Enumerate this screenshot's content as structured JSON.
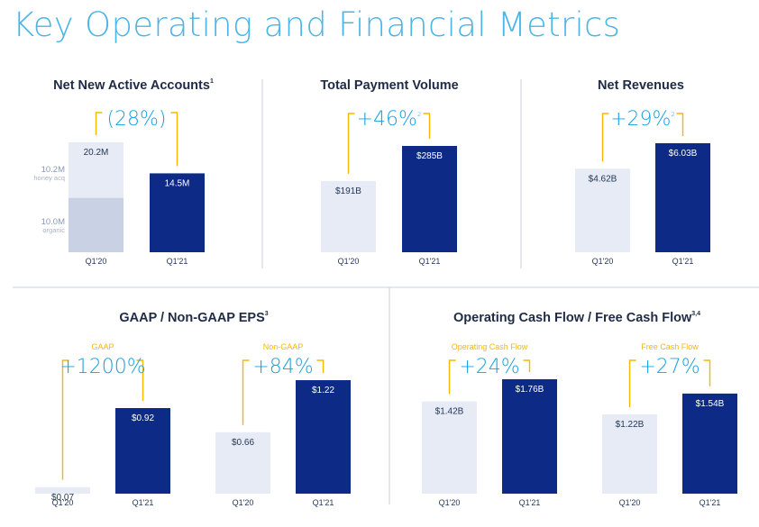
{
  "title": "Key Operating and Financial Metrics",
  "colors": {
    "light": "#e6ebf5",
    "dark": "#0c2a86",
    "accent": "#f5b800",
    "growth": "#1aa0e0",
    "divider": "#c8cfdb"
  },
  "chart_data": [
    {
      "type": "bar",
      "title": "Net New Active Accounts",
      "footnote": "1",
      "categories": [
        "Q1'20",
        "Q1'21"
      ],
      "values": [
        20.2,
        14.5
      ],
      "labels": [
        "20.2M",
        "14.5M"
      ],
      "growth": "(28%)",
      "segments": [
        {
          "label": "10.0M",
          "sublabel": "organic",
          "value": 10.0
        },
        {
          "label": "10.2M",
          "sublabel": "honey acq",
          "value": 10.2
        }
      ]
    },
    {
      "type": "bar",
      "title": "Total Payment Volume",
      "categories": [
        "Q1'20",
        "Q1'21"
      ],
      "values": [
        191,
        285
      ],
      "labels": [
        "$191B",
        "$285B"
      ],
      "growth": "+46%",
      "growth_sup": "2"
    },
    {
      "type": "bar",
      "title": "Net Revenues",
      "categories": [
        "Q1'20",
        "Q1'21"
      ],
      "values": [
        4.62,
        6.03
      ],
      "labels": [
        "$4.62B",
        "$6.03B"
      ],
      "growth": "+29%",
      "growth_sup": "2"
    },
    {
      "type": "bar",
      "title": "GAAP / Non-GAAP EPS",
      "footnote": "3",
      "groups": [
        {
          "name": "GAAP",
          "categories": [
            "Q1'20",
            "Q1'21"
          ],
          "values": [
            0.07,
            0.92
          ],
          "labels": [
            "$0.07",
            "$0.92"
          ],
          "growth": "+1200%"
        },
        {
          "name": "Non-GAAP",
          "categories": [
            "Q1'20",
            "Q1'21"
          ],
          "values": [
            0.66,
            1.22
          ],
          "labels": [
            "$0.66",
            "$1.22"
          ],
          "growth": "+84%"
        }
      ]
    },
    {
      "type": "bar",
      "title": "Operating Cash Flow / Free Cash Flow",
      "footnote": "3,4",
      "groups": [
        {
          "name": "Operating Cash Flow",
          "categories": [
            "Q1'20",
            "Q1'21"
          ],
          "values": [
            1.42,
            1.76
          ],
          "labels": [
            "$1.42B",
            "$1.76B"
          ],
          "growth": "+24%"
        },
        {
          "name": "Free Cash Flow",
          "categories": [
            "Q1'20",
            "Q1'21"
          ],
          "values": [
            1.22,
            1.54
          ],
          "labels": [
            "$1.22B",
            "$1.54B"
          ],
          "growth": "+27%"
        }
      ]
    }
  ]
}
